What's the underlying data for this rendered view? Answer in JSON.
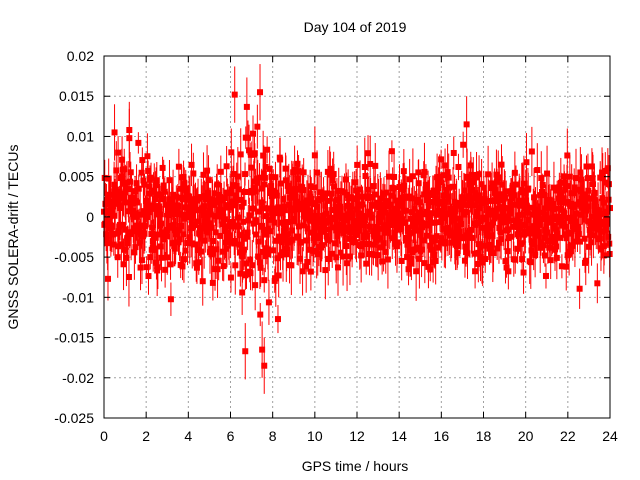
{
  "chart_data": {
    "type": "scatter",
    "title": "Day 104 of 2019",
    "xlabel": "GPS time / hours",
    "ylabel": "GNSS SOLERA-drift / TECUs",
    "xlim": [
      0,
      24
    ],
    "ylim": [
      -0.025,
      0.02
    ],
    "xticks": [
      0,
      2,
      4,
      6,
      8,
      10,
      12,
      14,
      16,
      18,
      20,
      22,
      24
    ],
    "yticks": [
      -0.025,
      -0.02,
      -0.015,
      -0.01,
      -0.005,
      0,
      0.005,
      0.01,
      0.015,
      0.02
    ],
    "xtick_labels": [
      "0",
      "2",
      "4",
      "6",
      "8",
      "10",
      "12",
      "14",
      "16",
      "18",
      "20",
      "22",
      "24"
    ],
    "ytick_labels": [
      "-0.025",
      "-0.02",
      "-0.015",
      "-0.01",
      "-0.005",
      "0",
      "0.005",
      "0.01",
      "0.015",
      "0.02"
    ],
    "grid": true,
    "series": [
      {
        "name": "SOLERA drift",
        "color": "#ff0000",
        "marker": "square",
        "error_bars": true,
        "x_range": [
          0,
          24
        ],
        "approx_std_dev": 0.0045,
        "notable_points": [
          {
            "x": 6.2,
            "y": 0.0152
          },
          {
            "x": 7.4,
            "y": 0.0155
          },
          {
            "x": 7.6,
            "y": -0.0185
          },
          {
            "x": 7.5,
            "y": -0.0165
          },
          {
            "x": 6.7,
            "y": -0.0167
          },
          {
            "x": 17.2,
            "y": 0.0115
          },
          {
            "x": 1.2,
            "y": 0.0108
          },
          {
            "x": 0.5,
            "y": 0.0105
          }
        ]
      }
    ]
  }
}
